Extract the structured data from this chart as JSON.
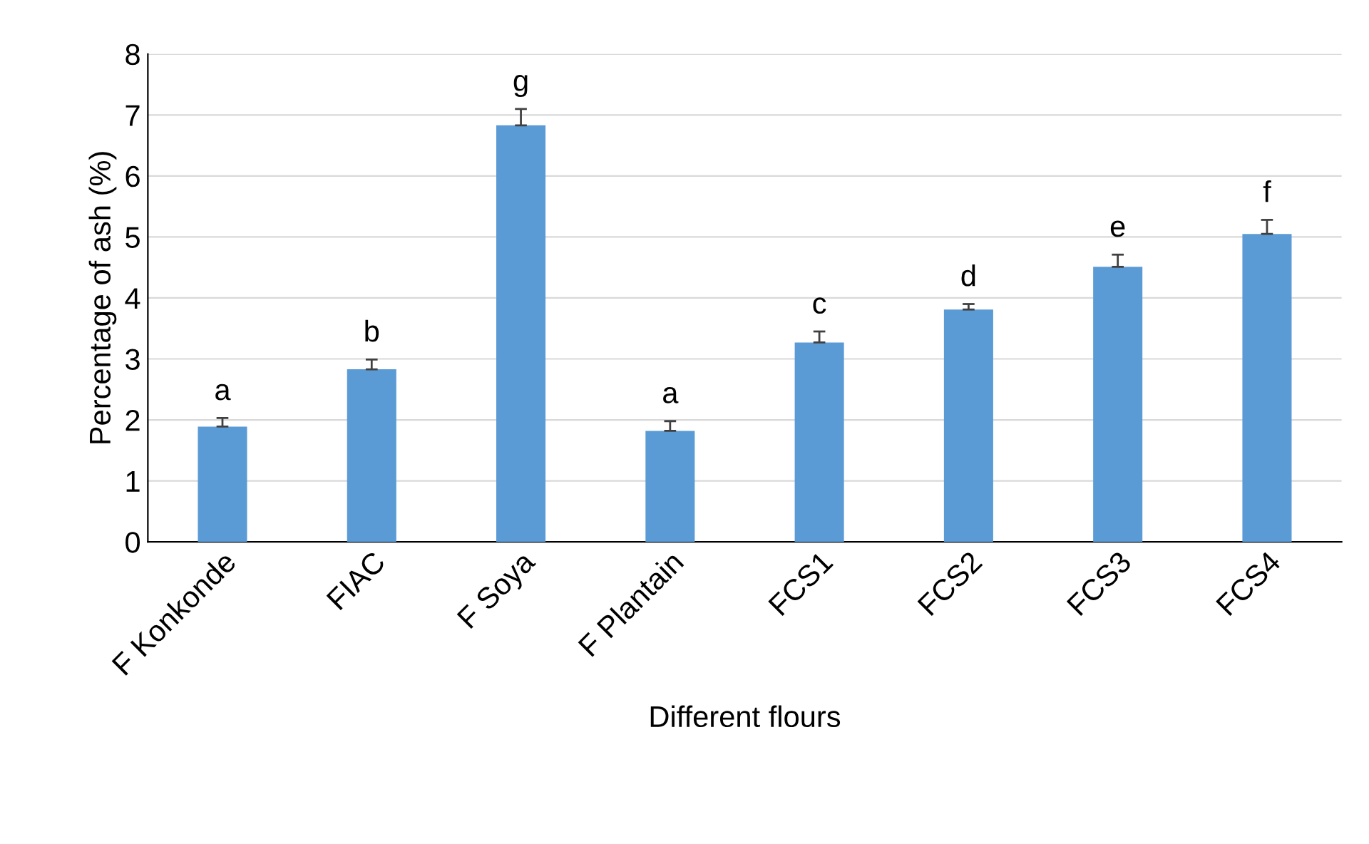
{
  "chart_data": {
    "type": "bar",
    "xlabel": "Different flours",
    "ylabel": "Percentage of ash (%)",
    "categories": [
      "F Konkonde",
      "FIAC",
      "F Soya",
      "F Plantain",
      "FCS1",
      "FCS2",
      "FCS3",
      "FCS4"
    ],
    "values": [
      1.89,
      2.83,
      6.83,
      1.82,
      3.27,
      3.81,
      4.51,
      5.05
    ],
    "errors": [
      [
        1.89,
        2.03
      ],
      [
        2.83,
        2.99
      ],
      [
        6.83,
        7.1
      ],
      [
        1.82,
        1.98
      ],
      [
        3.27,
        3.45
      ],
      [
        3.81,
        3.9
      ],
      [
        4.51,
        4.71
      ],
      [
        5.05,
        5.28
      ]
    ],
    "color": "#5b9bd5",
    "ylim": [
      0,
      8
    ],
    "yticks": [
      0,
      1,
      2,
      3,
      4,
      5,
      6,
      7,
      8
    ],
    "grid": "y",
    "legend": false,
    "annotations": [
      {
        "text": "a",
        "x": "F Konkonde",
        "y": 2.03
      },
      {
        "text": "b",
        "x": "FIAC",
        "y": 2.99
      },
      {
        "text": "g",
        "x": "F Soya",
        "y": 7.1
      },
      {
        "text": "a",
        "x": "F Plantain",
        "y": 1.98
      },
      {
        "text": "c",
        "x": "FCS1",
        "y": 3.45
      },
      {
        "text": "d",
        "x": "FCS2",
        "y": 3.9
      },
      {
        "text": "e",
        "x": "FCS3",
        "y": 4.71
      },
      {
        "text": "f",
        "x": "FCS4",
        "y": 5.28
      }
    ]
  }
}
